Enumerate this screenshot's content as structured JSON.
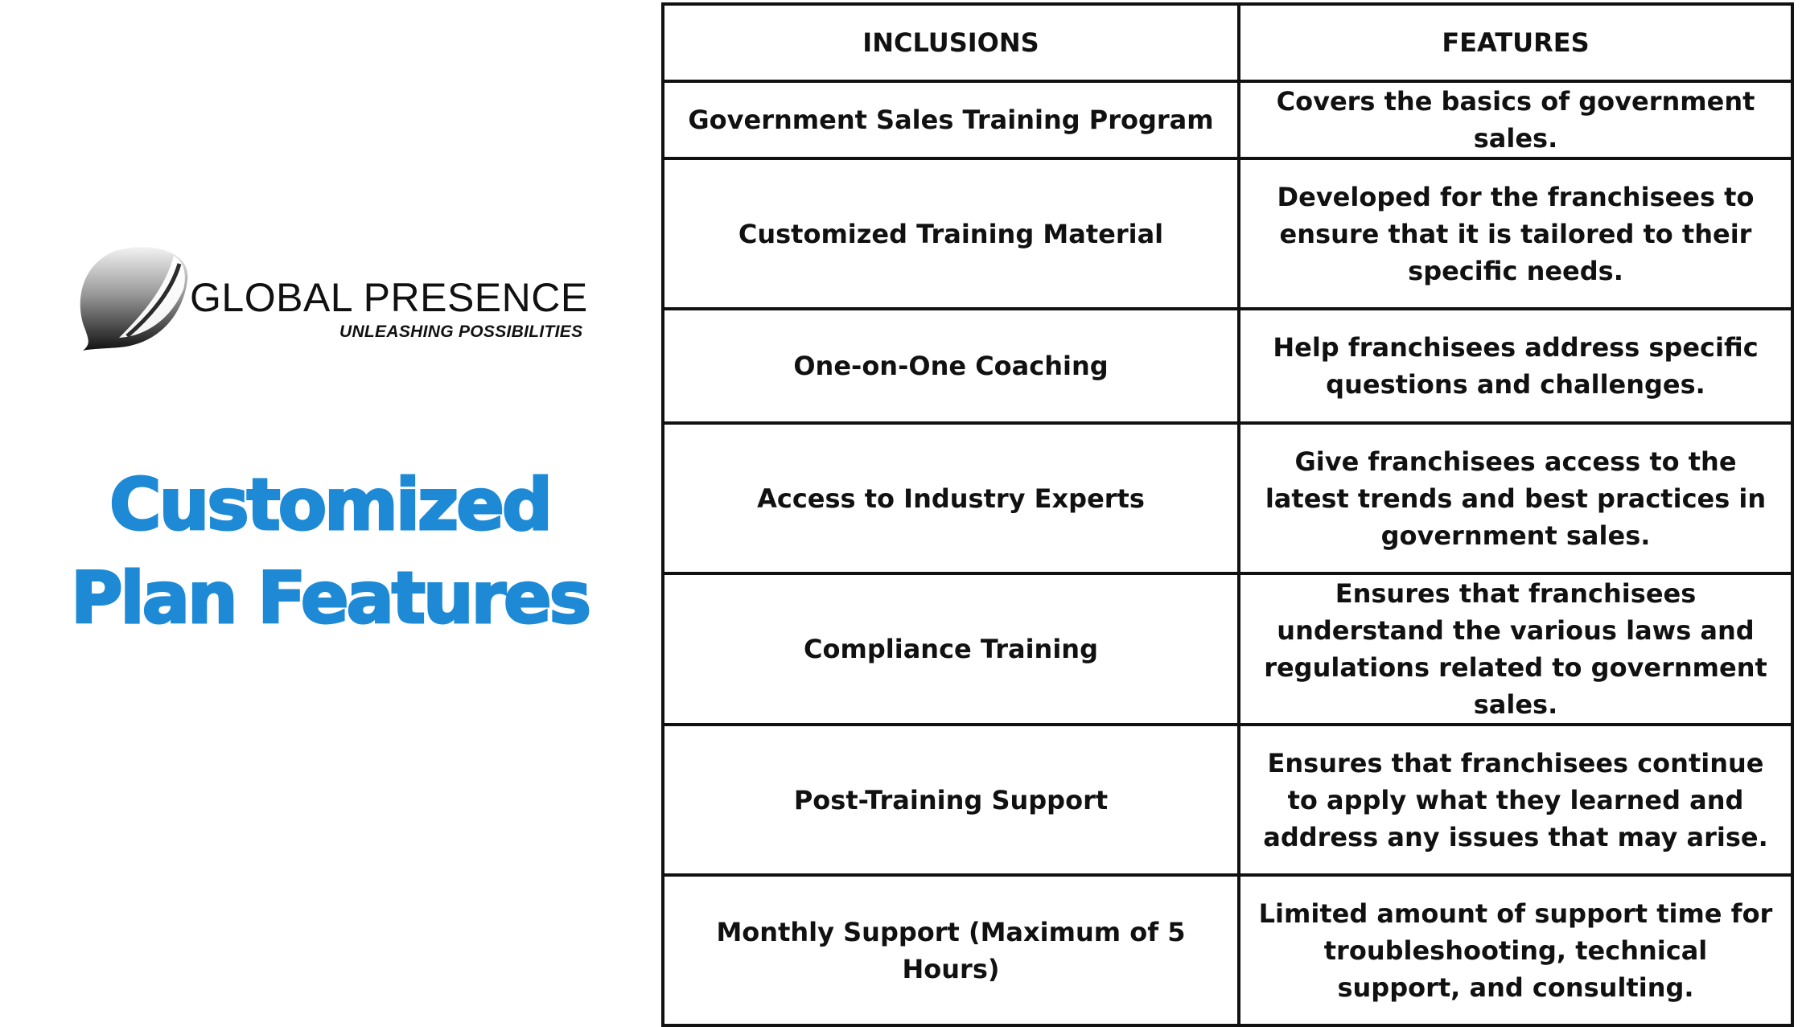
{
  "brand": {
    "name": "GLOBAL PRESENCE",
    "tagline": "UNLEASHING POSSIBILITIES",
    "accent_color": "#1e8ad6",
    "logo_icon": "globe-swoosh-icon"
  },
  "heading": {
    "line1": "Customized",
    "line2": "Plan Features"
  },
  "table": {
    "headers": [
      "INCLUSIONS",
      "FEATURES"
    ],
    "rows": [
      {
        "inclusion": "Government Sales Training Program",
        "feature": "Covers the basics of government sales."
      },
      {
        "inclusion": "Customized Training Material",
        "feature": "Developed for the franchisees to ensure that it is tailored to their specific needs."
      },
      {
        "inclusion": "One-on-One Coaching",
        "feature": "Help franchisees address specific questions and challenges."
      },
      {
        "inclusion": "Access to Industry Experts",
        "feature": "Give franchisees access to the latest trends and best practices in government sales."
      },
      {
        "inclusion": "Compliance Training",
        "feature": "Ensures that franchisees understand the various laws and regulations related to government sales."
      },
      {
        "inclusion": "Post-Training Support",
        "feature": "Ensures that franchisees continue to apply what they learned and address any issues that may arise."
      },
      {
        "inclusion": "Monthly Support (Maximum of 5 Hours)",
        "feature": "Limited amount of support time for troubleshooting, technical support, and consulting."
      }
    ]
  }
}
